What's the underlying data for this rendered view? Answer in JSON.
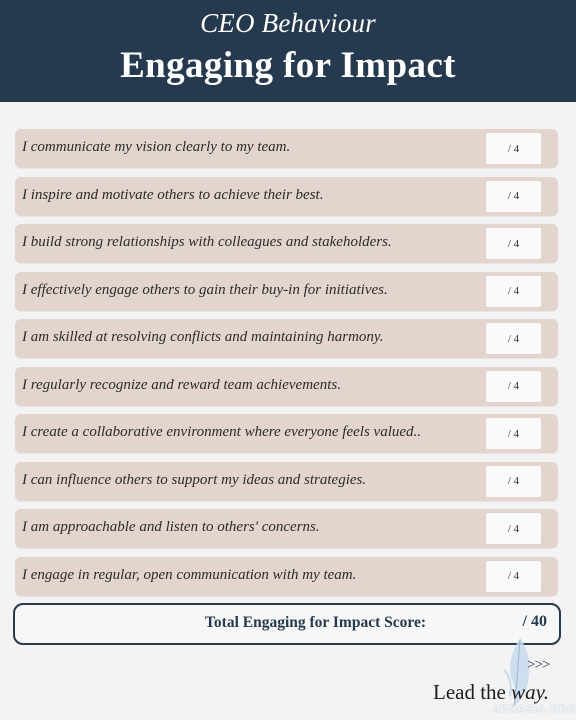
{
  "header": {
    "subtitle": "CEO Behaviour",
    "title": "Engaging for Impact"
  },
  "score_suffix": "/ 4",
  "items": [
    {
      "text": "I communicate my vision clearly to my team."
    },
    {
      "text": "I inspire and motivate others to achieve their best."
    },
    {
      "text": "I build strong relationships with colleagues and stakeholders."
    },
    {
      "text": "I effectively engage others to gain their buy-in for initiatives."
    },
    {
      "text": "I am skilled at resolving conflicts and maintaining harmony."
    },
    {
      "text": "I regularly recognize and reward team achievements."
    },
    {
      "text": "I create a collaborative environment where everyone feels valued.."
    },
    {
      "text": "I can influence others to support my ideas and strategies."
    },
    {
      "text": "I am approachable and listen to others' concerns."
    },
    {
      "text": "I engage in regular, open communication with my team."
    }
  ],
  "total": {
    "label": "Total Engaging for Impact Score:",
    "score": "/ 40"
  },
  "footer": {
    "arrows": ">>>",
    "tagline_start": "Lead the ",
    "tagline_emph": "way.",
    "watermark": "ABNASIA.ORG",
    "logo_icon": "feather-logo-icon"
  }
}
